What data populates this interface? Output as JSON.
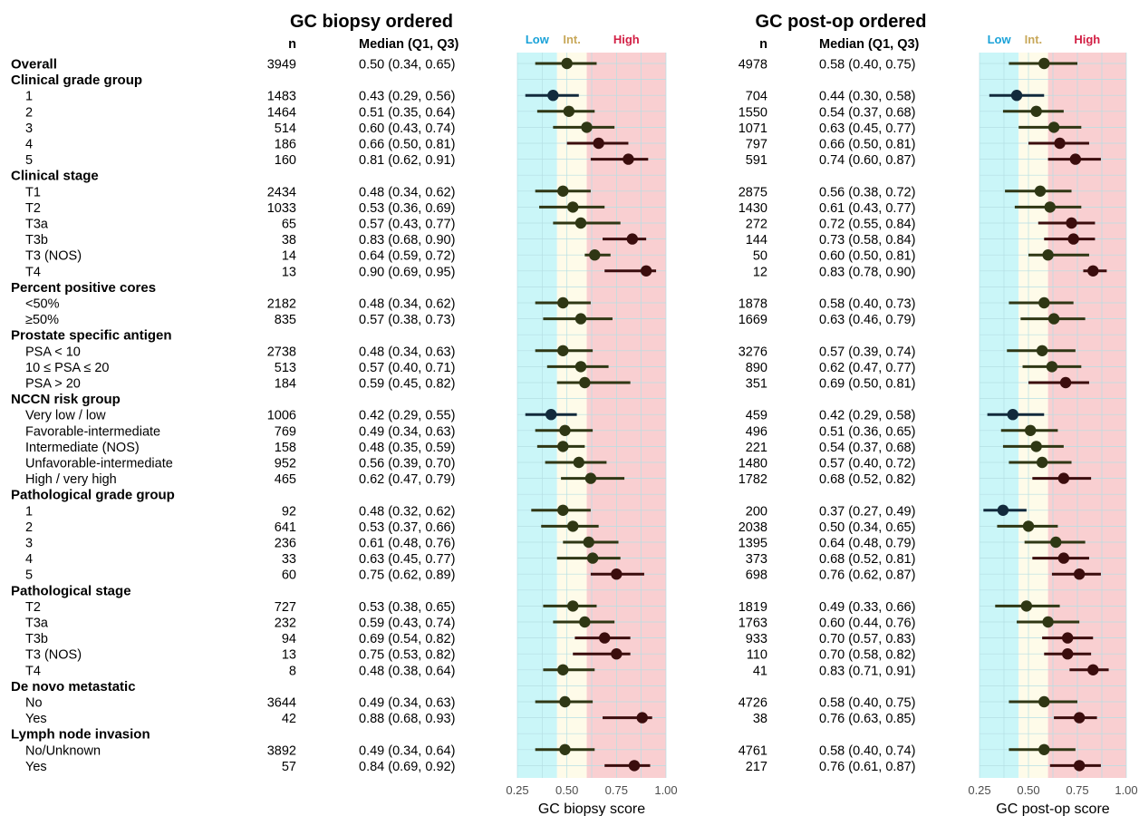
{
  "titles": {
    "biopsy": "GC biopsy ordered",
    "postop": "GC post-op ordered"
  },
  "col_headers": {
    "n": "n",
    "median": "Median (Q1, Q3)"
  },
  "zones": [
    {
      "label": "Low",
      "from": 0.25,
      "to": 0.45,
      "color": "#caf6f8",
      "label_color": "#1aa2d8"
    },
    {
      "label": "Int.",
      "from": 0.45,
      "to": 0.6,
      "color": "#fefbe9",
      "label_color": "#c8a85a"
    },
    {
      "label": "High",
      "from": 0.6,
      "to": 1.0,
      "color": "#f9cfd1",
      "label_color": "#d21f44"
    }
  ],
  "colors": {
    "gridline": "#b5dfe4",
    "point_low": "#122a3c",
    "point_mid": "#2f3714",
    "point_high": "#3b0d0d"
  },
  "chart_data": {
    "type": "forest",
    "xlim": [
      0.25,
      1.0
    ],
    "xticks": [
      "0.25",
      "0.50",
      "0.75",
      "1.00"
    ],
    "panels": [
      {
        "key": "biopsy",
        "xlabel": "GC biopsy score"
      },
      {
        "key": "postop",
        "xlabel": "GC post-op score"
      }
    ],
    "rows": [
      {
        "label": "Overall",
        "header": true,
        "biopsy": {
          "n": "3949",
          "text": "0.50 (0.34, 0.65)",
          "median": 0.5,
          "q1": 0.34,
          "q3": 0.65
        },
        "postop": {
          "n": "4978",
          "text": "0.58 (0.40, 0.75)",
          "median": 0.58,
          "q1": 0.4,
          "q3": 0.75
        }
      },
      {
        "label": "Clinical grade group",
        "header": true
      },
      {
        "label": "1",
        "biopsy": {
          "n": "1483",
          "text": "0.43 (0.29, 0.56)",
          "median": 0.43,
          "q1": 0.29,
          "q3": 0.56
        },
        "postop": {
          "n": "704",
          "text": "0.44 (0.30, 0.58)",
          "median": 0.44,
          "q1": 0.3,
          "q3": 0.58
        }
      },
      {
        "label": "2",
        "biopsy": {
          "n": "1464",
          "text": "0.51 (0.35, 0.64)",
          "median": 0.51,
          "q1": 0.35,
          "q3": 0.64
        },
        "postop": {
          "n": "1550",
          "text": "0.54 (0.37, 0.68)",
          "median": 0.54,
          "q1": 0.37,
          "q3": 0.68
        }
      },
      {
        "label": "3",
        "biopsy": {
          "n": "514",
          "text": "0.60 (0.43, 0.74)",
          "median": 0.6,
          "q1": 0.43,
          "q3": 0.74
        },
        "postop": {
          "n": "1071",
          "text": "0.63 (0.45, 0.77)",
          "median": 0.63,
          "q1": 0.45,
          "q3": 0.77
        }
      },
      {
        "label": "4",
        "biopsy": {
          "n": "186",
          "text": "0.66 (0.50, 0.81)",
          "median": 0.66,
          "q1": 0.5,
          "q3": 0.81
        },
        "postop": {
          "n": "797",
          "text": "0.66 (0.50, 0.81)",
          "median": 0.66,
          "q1": 0.5,
          "q3": 0.81
        }
      },
      {
        "label": "5",
        "biopsy": {
          "n": "160",
          "text": "0.81 (0.62, 0.91)",
          "median": 0.81,
          "q1": 0.62,
          "q3": 0.91
        },
        "postop": {
          "n": "591",
          "text": "0.74 (0.60, 0.87)",
          "median": 0.74,
          "q1": 0.6,
          "q3": 0.87
        }
      },
      {
        "label": "Clinical stage",
        "header": true
      },
      {
        "label": "T1",
        "biopsy": {
          "n": "2434",
          "text": "0.48 (0.34, 0.62)",
          "median": 0.48,
          "q1": 0.34,
          "q3": 0.62
        },
        "postop": {
          "n": "2875",
          "text": "0.56 (0.38, 0.72)",
          "median": 0.56,
          "q1": 0.38,
          "q3": 0.72
        }
      },
      {
        "label": "T2",
        "biopsy": {
          "n": "1033",
          "text": "0.53 (0.36, 0.69)",
          "median": 0.53,
          "q1": 0.36,
          "q3": 0.69
        },
        "postop": {
          "n": "1430",
          "text": "0.61 (0.43, 0.77)",
          "median": 0.61,
          "q1": 0.43,
          "q3": 0.77
        }
      },
      {
        "label": "T3a",
        "biopsy": {
          "n": "65",
          "text": "0.57 (0.43, 0.77)",
          "median": 0.57,
          "q1": 0.43,
          "q3": 0.77
        },
        "postop": {
          "n": "272",
          "text": "0.72 (0.55, 0.84)",
          "median": 0.72,
          "q1": 0.55,
          "q3": 0.84
        }
      },
      {
        "label": "T3b",
        "biopsy": {
          "n": "38",
          "text": "0.83 (0.68, 0.90)",
          "median": 0.83,
          "q1": 0.68,
          "q3": 0.9
        },
        "postop": {
          "n": "144",
          "text": "0.73 (0.58, 0.84)",
          "median": 0.73,
          "q1": 0.58,
          "q3": 0.84
        }
      },
      {
        "label": "T3 (NOS)",
        "biopsy": {
          "n": "14",
          "text": "0.64 (0.59, 0.72)",
          "median": 0.64,
          "q1": 0.59,
          "q3": 0.72
        },
        "postop": {
          "n": "50",
          "text": "0.60 (0.50, 0.81)",
          "median": 0.6,
          "q1": 0.5,
          "q3": 0.81
        }
      },
      {
        "label": "T4",
        "biopsy": {
          "n": "13",
          "text": "0.90 (0.69, 0.95)",
          "median": 0.9,
          "q1": 0.69,
          "q3": 0.95
        },
        "postop": {
          "n": "12",
          "text": "0.83 (0.78, 0.90)",
          "median": 0.83,
          "q1": 0.78,
          "q3": 0.9
        }
      },
      {
        "label": "Percent positive cores",
        "header": true
      },
      {
        "label": "<50%",
        "biopsy": {
          "n": "2182",
          "text": "0.48 (0.34, 0.62)",
          "median": 0.48,
          "q1": 0.34,
          "q3": 0.62
        },
        "postop": {
          "n": "1878",
          "text": "0.58 (0.40, 0.73)",
          "median": 0.58,
          "q1": 0.4,
          "q3": 0.73
        }
      },
      {
        "label": "≥50%",
        "biopsy": {
          "n": "835",
          "text": "0.57 (0.38, 0.73)",
          "median": 0.57,
          "q1": 0.38,
          "q3": 0.73
        },
        "postop": {
          "n": "1669",
          "text": "0.63 (0.46, 0.79)",
          "median": 0.63,
          "q1": 0.46,
          "q3": 0.79
        }
      },
      {
        "label": "Prostate specific antigen",
        "header": true
      },
      {
        "label": "PSA < 10",
        "biopsy": {
          "n": "2738",
          "text": "0.48 (0.34, 0.63)",
          "median": 0.48,
          "q1": 0.34,
          "q3": 0.63
        },
        "postop": {
          "n": "3276",
          "text": "0.57 (0.39, 0.74)",
          "median": 0.57,
          "q1": 0.39,
          "q3": 0.74
        }
      },
      {
        "label": "10 ≤ PSA ≤ 20",
        "biopsy": {
          "n": "513",
          "text": "0.57 (0.40, 0.71)",
          "median": 0.57,
          "q1": 0.4,
          "q3": 0.71
        },
        "postop": {
          "n": "890",
          "text": "0.62 (0.47, 0.77)",
          "median": 0.62,
          "q1": 0.47,
          "q3": 0.77
        }
      },
      {
        "label": "PSA > 20",
        "biopsy": {
          "n": "184",
          "text": "0.59 (0.45, 0.82)",
          "median": 0.59,
          "q1": 0.45,
          "q3": 0.82
        },
        "postop": {
          "n": "351",
          "text": "0.69 (0.50, 0.81)",
          "median": 0.69,
          "q1": 0.5,
          "q3": 0.81
        }
      },
      {
        "label": "NCCN risk group",
        "header": true
      },
      {
        "label": "Very low / low",
        "biopsy": {
          "n": "1006",
          "text": "0.42 (0.29, 0.55)",
          "median": 0.42,
          "q1": 0.29,
          "q3": 0.55
        },
        "postop": {
          "n": "459",
          "text": "0.42 (0.29, 0.58)",
          "median": 0.42,
          "q1": 0.29,
          "q3": 0.58
        }
      },
      {
        "label": "Favorable-intermediate",
        "biopsy": {
          "n": "769",
          "text": "0.49 (0.34, 0.63)",
          "median": 0.49,
          "q1": 0.34,
          "q3": 0.63
        },
        "postop": {
          "n": "496",
          "text": "0.51 (0.36, 0.65)",
          "median": 0.51,
          "q1": 0.36,
          "q3": 0.65
        }
      },
      {
        "label": "Intermediate (NOS)",
        "biopsy": {
          "n": "158",
          "text": "0.48 (0.35, 0.59)",
          "median": 0.48,
          "q1": 0.35,
          "q3": 0.59
        },
        "postop": {
          "n": "221",
          "text": "0.54 (0.37, 0.68)",
          "median": 0.54,
          "q1": 0.37,
          "q3": 0.68
        }
      },
      {
        "label": "Unfavorable-intermediate",
        "biopsy": {
          "n": "952",
          "text": "0.56 (0.39, 0.70)",
          "median": 0.56,
          "q1": 0.39,
          "q3": 0.7
        },
        "postop": {
          "n": "1480",
          "text": "0.57 (0.40, 0.72)",
          "median": 0.57,
          "q1": 0.4,
          "q3": 0.72
        }
      },
      {
        "label": "High / very high",
        "biopsy": {
          "n": "465",
          "text": "0.62 (0.47, 0.79)",
          "median": 0.62,
          "q1": 0.47,
          "q3": 0.79
        },
        "postop": {
          "n": "1782",
          "text": "0.68 (0.52, 0.82)",
          "median": 0.68,
          "q1": 0.52,
          "q3": 0.82
        }
      },
      {
        "label": "Pathological grade group",
        "header": true
      },
      {
        "label": "1",
        "biopsy": {
          "n": "92",
          "text": "0.48 (0.32, 0.62)",
          "median": 0.48,
          "q1": 0.32,
          "q3": 0.62
        },
        "postop": {
          "n": "200",
          "text": "0.37 (0.27, 0.49)",
          "median": 0.37,
          "q1": 0.27,
          "q3": 0.49
        }
      },
      {
        "label": "2",
        "biopsy": {
          "n": "641",
          "text": "0.53 (0.37, 0.66)",
          "median": 0.53,
          "q1": 0.37,
          "q3": 0.66
        },
        "postop": {
          "n": "2038",
          "text": "0.50 (0.34, 0.65)",
          "median": 0.5,
          "q1": 0.34,
          "q3": 0.65
        }
      },
      {
        "label": "3",
        "biopsy": {
          "n": "236",
          "text": "0.61 (0.48, 0.76)",
          "median": 0.61,
          "q1": 0.48,
          "q3": 0.76
        },
        "postop": {
          "n": "1395",
          "text": "0.64 (0.48, 0.79)",
          "median": 0.64,
          "q1": 0.48,
          "q3": 0.79
        }
      },
      {
        "label": "4",
        "biopsy": {
          "n": "33",
          "text": "0.63 (0.45, 0.77)",
          "median": 0.63,
          "q1": 0.45,
          "q3": 0.77
        },
        "postop": {
          "n": "373",
          "text": "0.68 (0.52, 0.81)",
          "median": 0.68,
          "q1": 0.52,
          "q3": 0.81
        }
      },
      {
        "label": "5",
        "biopsy": {
          "n": "60",
          "text": "0.75 (0.62, 0.89)",
          "median": 0.75,
          "q1": 0.62,
          "q3": 0.89
        },
        "postop": {
          "n": "698",
          "text": "0.76 (0.62, 0.87)",
          "median": 0.76,
          "q1": 0.62,
          "q3": 0.87
        }
      },
      {
        "label": "Pathological stage",
        "header": true
      },
      {
        "label": "T2",
        "biopsy": {
          "n": "727",
          "text": "0.53 (0.38, 0.65)",
          "median": 0.53,
          "q1": 0.38,
          "q3": 0.65
        },
        "postop": {
          "n": "1819",
          "text": "0.49 (0.33, 0.66)",
          "median": 0.49,
          "q1": 0.33,
          "q3": 0.66
        }
      },
      {
        "label": "T3a",
        "biopsy": {
          "n": "232",
          "text": "0.59 (0.43, 0.74)",
          "median": 0.59,
          "q1": 0.43,
          "q3": 0.74
        },
        "postop": {
          "n": "1763",
          "text": "0.60 (0.44, 0.76)",
          "median": 0.6,
          "q1": 0.44,
          "q3": 0.76
        }
      },
      {
        "label": "T3b",
        "biopsy": {
          "n": "94",
          "text": "0.69 (0.54, 0.82)",
          "median": 0.69,
          "q1": 0.54,
          "q3": 0.82
        },
        "postop": {
          "n": "933",
          "text": "0.70 (0.57, 0.83)",
          "median": 0.7,
          "q1": 0.57,
          "q3": 0.83
        }
      },
      {
        "label": "T3 (NOS)",
        "biopsy": {
          "n": "13",
          "text": "0.75 (0.53, 0.82)",
          "median": 0.75,
          "q1": 0.53,
          "q3": 0.82
        },
        "postop": {
          "n": "110",
          "text": "0.70 (0.58, 0.82)",
          "median": 0.7,
          "q1": 0.58,
          "q3": 0.82
        }
      },
      {
        "label": "T4",
        "biopsy": {
          "n": "8",
          "text": "0.48 (0.38, 0.64)",
          "median": 0.48,
          "q1": 0.38,
          "q3": 0.64
        },
        "postop": {
          "n": "41",
          "text": "0.83 (0.71, 0.91)",
          "median": 0.83,
          "q1": 0.71,
          "q3": 0.91
        }
      },
      {
        "label": "De novo metastatic",
        "header": true
      },
      {
        "label": "No",
        "biopsy": {
          "n": "3644",
          "text": "0.49 (0.34, 0.63)",
          "median": 0.49,
          "q1": 0.34,
          "q3": 0.63
        },
        "postop": {
          "n": "4726",
          "text": "0.58 (0.40, 0.75)",
          "median": 0.58,
          "q1": 0.4,
          "q3": 0.75
        }
      },
      {
        "label": "Yes",
        "biopsy": {
          "n": "42",
          "text": "0.88 (0.68, 0.93)",
          "median": 0.88,
          "q1": 0.68,
          "q3": 0.93
        },
        "postop": {
          "n": "38",
          "text": "0.76 (0.63, 0.85)",
          "median": 0.76,
          "q1": 0.63,
          "q3": 0.85
        }
      },
      {
        "label": "Lymph node invasion",
        "header": true
      },
      {
        "label": "No/Unknown",
        "biopsy": {
          "n": "3892",
          "text": "0.49 (0.34, 0.64)",
          "median": 0.49,
          "q1": 0.34,
          "q3": 0.64
        },
        "postop": {
          "n": "4761",
          "text": "0.58 (0.40, 0.74)",
          "median": 0.58,
          "q1": 0.4,
          "q3": 0.74
        }
      },
      {
        "label": "Yes",
        "biopsy": {
          "n": "57",
          "text": "0.84 (0.69, 0.92)",
          "median": 0.84,
          "q1": 0.69,
          "q3": 0.92
        },
        "postop": {
          "n": "217",
          "text": "0.76 (0.61, 0.87)",
          "median": 0.76,
          "q1": 0.61,
          "q3": 0.87
        }
      }
    ]
  }
}
